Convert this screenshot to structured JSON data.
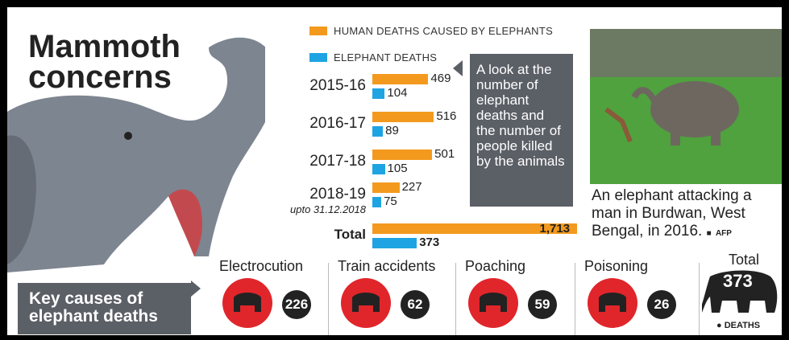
{
  "chart_data": {
    "type": "bar",
    "title": "Mammoth concerns",
    "categories": [
      "2015-16",
      "2016-17",
      "2017-18",
      "2018-19",
      "Total"
    ],
    "category_note": "upto 31.12.2018",
    "series": [
      {
        "name": "HUMAN DEATHS CAUSED BY ELEPHANTS",
        "color": "#f39a1e",
        "values": [
          469,
          516,
          501,
          227,
          1713
        ],
        "value_labels": [
          "469",
          "516",
          "501",
          "227",
          "1,713"
        ]
      },
      {
        "name": "ELEPHANT DEATHS",
        "color": "#1ea4e2",
        "values": [
          104,
          89,
          105,
          75,
          373
        ]
      }
    ],
    "callout": "A look at the number of elephant deaths and the number of people killed by the animals"
  },
  "photo": {
    "caption": "An elephant attacking a man in Burdwan, West Bengal, in 2016.",
    "credit": "AFP"
  },
  "causes": {
    "title": "Key causes of elephant deaths",
    "items": [
      {
        "label": "Electrocution",
        "value": 226
      },
      {
        "label": "Train accidents",
        "value": 62
      },
      {
        "label": "Poaching",
        "value": 59
      },
      {
        "label": "Poisoning",
        "value": 26
      }
    ],
    "total": {
      "label": "Total",
      "value": 373,
      "unit": "DEATHS"
    }
  }
}
